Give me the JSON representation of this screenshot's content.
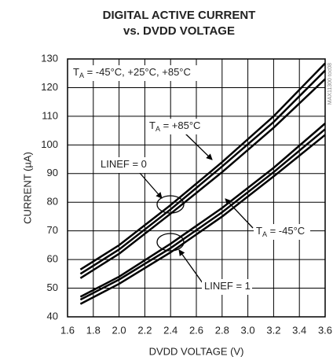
{
  "chart_data": {
    "type": "line",
    "title": "DIGITAL ACTIVE CURRENT",
    "subtitle": "vs. DVDD VOLTAGE",
    "x_label": "DVDD VOLTAGE (V)",
    "y_label": "CURRENT (µA)",
    "side_note": "MAX11300 toc08",
    "x": [
      1.7,
      2.0,
      2.4,
      2.8,
      3.2,
      3.6
    ],
    "series": [
      {
        "color": "#000000",
        "values": [
          56.5,
          65,
          79,
          94,
          110,
          128.5
        ]
      },
      {
        "color": "#000000",
        "values": [
          55,
          63.5,
          77.5,
          92.5,
          108,
          126
        ]
      },
      {
        "color": "#000000",
        "values": [
          53.5,
          62,
          76,
          90.5,
          106,
          123
        ]
      },
      {
        "color": "#000000",
        "values": [
          47,
          54,
          65.5,
          78,
          92,
          107.5
        ]
      },
      {
        "color": "#000000",
        "values": [
          46,
          53,
          64,
          76.5,
          90.5,
          105.5
        ]
      },
      {
        "color": "#000000",
        "values": [
          44.5,
          51.5,
          62.5,
          75,
          89,
          103.5
        ]
      }
    ],
    "xlim": [
      1.6,
      3.6
    ],
    "xticks": [
      1.6,
      1.8,
      {
        "value": 2.0,
        "label": "2.0"
      },
      2.2,
      2.4,
      2.6,
      2.8,
      {
        "value": 3.0,
        "label": "3.0"
      },
      3.2,
      3.4,
      3.6
    ],
    "ylim": [
      40,
      130
    ],
    "yticks": [
      40,
      50,
      60,
      70,
      80,
      90,
      100,
      110,
      120,
      130
    ],
    "grid": true,
    "annotations": [
      {
        "text": "T",
        "sub": "A",
        "rest": " = -45°C, +25°C, +85°C"
      },
      {
        "text": "T",
        "sub": "A",
        "rest": " = +85°C"
      },
      {
        "text": "T",
        "sub": "A",
        "rest": " = -45°C"
      },
      {
        "text": "LINEF = 0"
      },
      {
        "text": "LINEF = 1"
      }
    ]
  }
}
